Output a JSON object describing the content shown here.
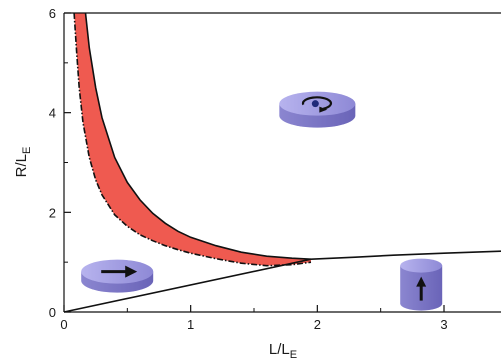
{
  "chart_data": {
    "type": "line",
    "title": "",
    "xlabel": {
      "main": "L/L",
      "sub": "E"
    },
    "ylabel": {
      "main": "R/L",
      "sub": "E"
    },
    "xlim": [
      0,
      3.45
    ],
    "ylim": [
      0,
      6
    ],
    "xticks": [
      0,
      1,
      2,
      3
    ],
    "yticks": [
      0,
      2,
      4,
      6
    ],
    "xtick_labels": [
      "0",
      "1",
      "2",
      "3"
    ],
    "ytick_labels": [
      "0",
      "2",
      "4",
      "6"
    ],
    "grid": false,
    "legend": "none",
    "series": [
      {
        "style": "solid",
        "x": [
          0.17,
          0.2,
          0.25,
          0.3,
          0.4,
          0.5,
          0.6,
          0.7,
          0.8,
          0.9,
          1.0,
          1.2,
          1.4,
          1.6,
          1.8,
          1.95
        ],
        "y": [
          6.0,
          5.3,
          4.5,
          3.9,
          3.1,
          2.6,
          2.25,
          1.98,
          1.78,
          1.62,
          1.5,
          1.33,
          1.2,
          1.12,
          1.08,
          1.06
        ]
      },
      {
        "style": "dash-dot",
        "x": [
          0.08,
          0.1,
          0.12,
          0.15,
          0.2,
          0.25,
          0.3,
          0.4,
          0.5,
          0.6,
          0.7,
          0.8,
          0.9,
          1.0,
          1.2,
          1.4,
          1.6,
          1.8,
          1.95
        ],
        "y": [
          6.0,
          5.2,
          4.5,
          3.8,
          3.1,
          2.65,
          2.35,
          1.95,
          1.72,
          1.55,
          1.43,
          1.33,
          1.25,
          1.18,
          1.07,
          0.98,
          0.93,
          0.95,
          1.0
        ]
      },
      {
        "style": "solid",
        "x": [
          1.95,
          2.3,
          2.6,
          3.0,
          3.45
        ],
        "y": [
          1.06,
          1.1,
          1.14,
          1.18,
          1.22
        ]
      },
      {
        "style": "solid",
        "x": [
          0,
          1.95
        ],
        "y": [
          0,
          1.06
        ]
      }
    ],
    "shaded_region": {
      "color": "#ef5a50",
      "between": [
        "series.0",
        "series.1"
      ]
    },
    "insets": [
      {
        "name": "vortex-state",
        "x": 2.0,
        "y": 4.1,
        "arrow": "circular"
      },
      {
        "name": "in-plane-state",
        "x": 0.42,
        "y": 0.75,
        "arrow": "right"
      },
      {
        "name": "out-of-plane-state",
        "x": 2.82,
        "y": 0.55,
        "arrow": "up"
      }
    ]
  }
}
